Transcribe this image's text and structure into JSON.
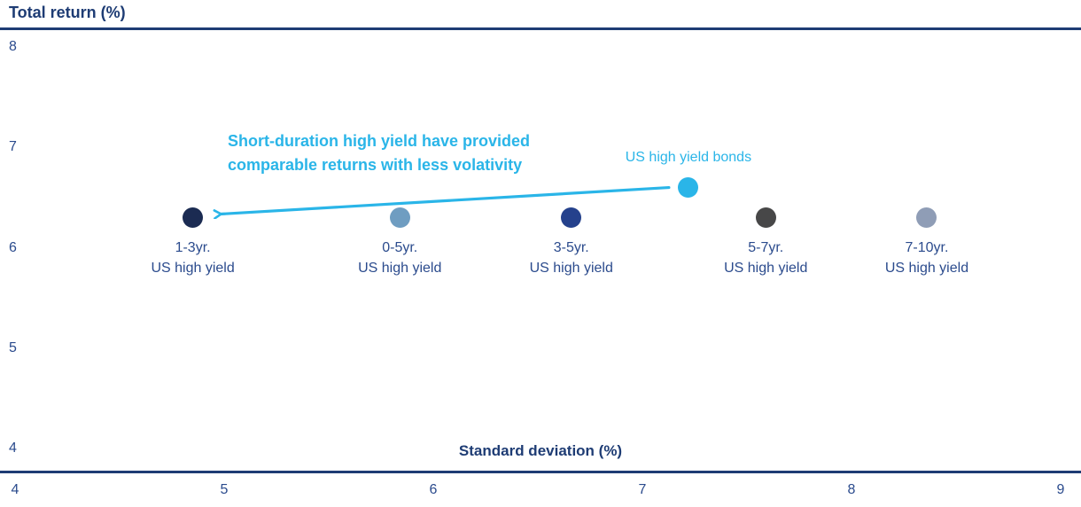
{
  "chart_data": {
    "type": "scatter",
    "y_axis_title": "Total return (%)",
    "x_axis_title": "Standard deviation (%)",
    "xlabel": "Standard deviation (%)",
    "ylabel": "Total return (%)",
    "xlim": [
      4,
      9
    ],
    "ylim": [
      4,
      8
    ],
    "x_ticks": [
      "4",
      "5",
      "6",
      "7",
      "8",
      "9"
    ],
    "y_ticks": [
      "8",
      "7",
      "6",
      "5",
      "4"
    ],
    "legend": "none",
    "grid": "off",
    "points": [
      {
        "name": "1-3yr-us-high-yield",
        "label_line1": "1-3yr.",
        "label_line2": "US high yield",
        "x": 4.85,
        "y": 6.3,
        "color": "#1b2b52",
        "label_position": "below"
      },
      {
        "name": "0-5yr-us-high-yield",
        "label_line1": "0-5yr.",
        "label_line2": "US high yield",
        "x": 5.84,
        "y": 6.3,
        "color": "#6f9dc1",
        "label_position": "below"
      },
      {
        "name": "3-5yr-us-high-yield",
        "label_line1": "3-5yr.",
        "label_line2": "US high yield",
        "x": 6.66,
        "y": 6.3,
        "color": "#25418c",
        "label_position": "below"
      },
      {
        "name": "us-high-yield-bonds",
        "label_line1": "US high yield bonds",
        "label_line2": "",
        "x": 7.22,
        "y": 6.6,
        "color": "#2ab5e8",
        "label_position": "above",
        "label_color": "#2ab5e8"
      },
      {
        "name": "5-7yr-us-high-yield",
        "label_line1": "5-7yr.",
        "label_line2": "US high yield",
        "x": 7.59,
        "y": 6.3,
        "color": "#474748",
        "label_position": "below"
      },
      {
        "name": "7-10yr-us-high-yield",
        "label_line1": "7-10yr.",
        "label_line2": "US high yield",
        "x": 8.36,
        "y": 6.3,
        "color": "#8f9db6",
        "label_position": "below"
      }
    ],
    "annotation": {
      "line1": "Short-duration high yield have provided",
      "line2": "comparable returns with less volativity",
      "color": "#2ab5e8"
    },
    "arrow": {
      "from_point": "us-high-yield-bonds",
      "to_point": "1-3yr-us-high-yield",
      "color": "#2ab5e8"
    }
  },
  "colors": {
    "axis_line_navy": "#1e3c74",
    "text_navy": "#2b4b8d",
    "accent_cyan": "#2ab5e8"
  }
}
